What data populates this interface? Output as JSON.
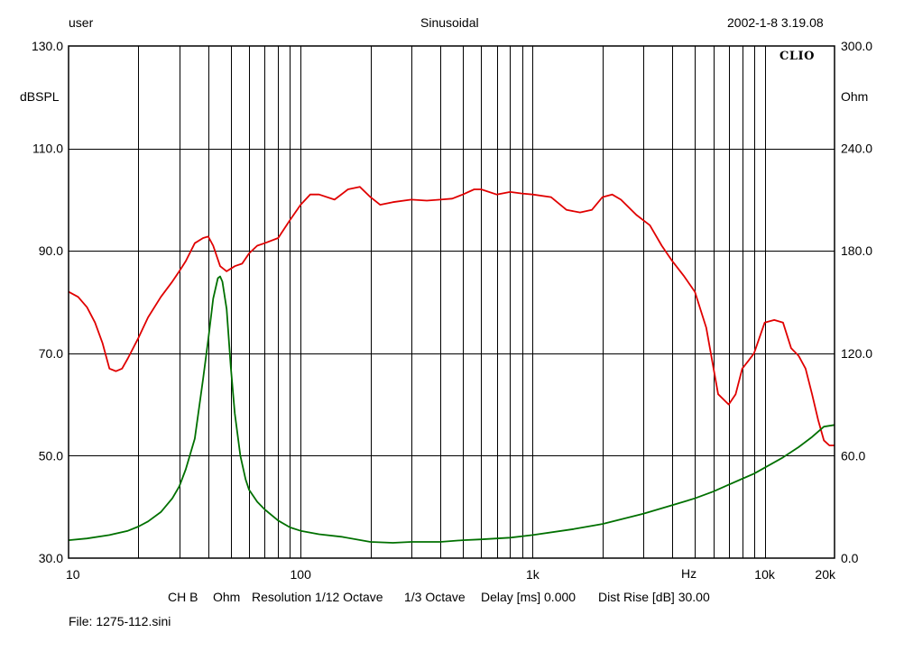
{
  "header": {
    "user": "user",
    "mode": "Sinusoidal",
    "datetime": "2002-1-8 3.19.08"
  },
  "logo_text": "CLIO",
  "footer": {
    "channel": "CH B",
    "unit": "Ohm",
    "resolution": "Resolution 1/12 Octave",
    "smoothing": "1/3 Octave",
    "delay": "Delay [ms] 0.000",
    "dist_rise": "Dist Rise [dB] 30.00",
    "file": "File: 1275-112.sini"
  },
  "chart_data": {
    "type": "line",
    "x_scale": "log",
    "xlim": [
      10,
      20000
    ],
    "ylim_left": [
      30,
      130
    ],
    "ylim_right": [
      0,
      300
    ],
    "ylabel_left": "dBSPL",
    "ylabel_right": "Ohm",
    "xlabel": "Hz",
    "x_ticks": [
      {
        "value": 10,
        "label": "10"
      },
      {
        "value": 100,
        "label": "100"
      },
      {
        "value": 1000,
        "label": "1k"
      },
      {
        "value": 10000,
        "label": "10k"
      },
      {
        "value": 20000,
        "label": "20k"
      }
    ],
    "y_ticks_left": [
      "130.0",
      "110.0",
      "90.0",
      "70.0",
      "50.0",
      "30.0"
    ],
    "y_ticks_right": [
      "300.0",
      "240.0",
      "180.0",
      "120.0",
      "60.0",
      "0.0"
    ],
    "grid": true,
    "series": [
      {
        "axis": "left",
        "color": "#e00000",
        "x": [
          10,
          11,
          12,
          13,
          14,
          15,
          16,
          17,
          18,
          20,
          22,
          25,
          28,
          30,
          32,
          35,
          38,
          40,
          42,
          45,
          48,
          52,
          56,
          60,
          65,
          70,
          80,
          90,
          100,
          110,
          120,
          140,
          160,
          180,
          200,
          220,
          250,
          300,
          350,
          400,
          450,
          500,
          560,
          600,
          700,
          800,
          900,
          1000,
          1200,
          1400,
          1600,
          1800,
          2000,
          2200,
          2400,
          2800,
          3200,
          3600,
          4000,
          4500,
          5000,
          5600,
          6300,
          7000,
          7500,
          8000,
          8500,
          9000,
          10000,
          11000,
          12000,
          13000,
          14000,
          15000,
          16000,
          17000,
          18000,
          19000,
          20000
        ],
        "values": [
          82,
          81,
          79,
          76,
          72,
          67,
          66.5,
          67,
          69,
          73,
          77,
          81,
          84,
          86,
          88,
          91.5,
          92.5,
          92.8,
          91,
          87,
          86,
          87,
          87.5,
          89.5,
          91,
          91.5,
          92.5,
          96,
          99,
          101,
          101,
          100,
          102,
          102.5,
          100.5,
          99,
          99.5,
          100,
          99.8,
          100,
          100.2,
          101,
          102,
          102,
          101,
          101.5,
          101.2,
          101,
          100.5,
          98,
          97.5,
          98,
          100.5,
          101,
          100,
          97,
          95,
          91,
          88,
          85,
          82,
          75,
          62,
          60,
          62,
          67,
          68.5,
          70,
          76,
          76.5,
          76,
          71,
          69.5,
          67,
          62,
          57,
          53,
          52,
          52
        ]
      },
      {
        "axis": "right",
        "color": "#007000",
        "x": [
          10,
          12,
          15,
          18,
          20,
          22,
          25,
          28,
          30,
          32,
          35,
          38,
          40,
          42,
          44,
          45,
          46,
          48,
          50,
          52,
          55,
          58,
          60,
          65,
          70,
          80,
          90,
          100,
          120,
          150,
          200,
          250,
          300,
          400,
          500,
          600,
          800,
          1000,
          1500,
          2000,
          3000,
          4000,
          5000,
          6000,
          7000,
          8000,
          9000,
          10000,
          12000,
          14000,
          16000,
          18000,
          20000
        ],
        "values": [
          10.5,
          11.5,
          13.5,
          16,
          18.5,
          21.5,
          27,
          35,
          42,
          52,
          70,
          105,
          128,
          152,
          164,
          165,
          162,
          146,
          112,
          85,
          60,
          46,
          40,
          33,
          28.5,
          22,
          18,
          16,
          14,
          12.5,
          9.5,
          9,
          9.5,
          9.5,
          10.5,
          11,
          12,
          13.5,
          17,
          20,
          26,
          31,
          35,
          39,
          43,
          46.5,
          49.5,
          53,
          59,
          65,
          71,
          77,
          78
        ]
      }
    ]
  }
}
